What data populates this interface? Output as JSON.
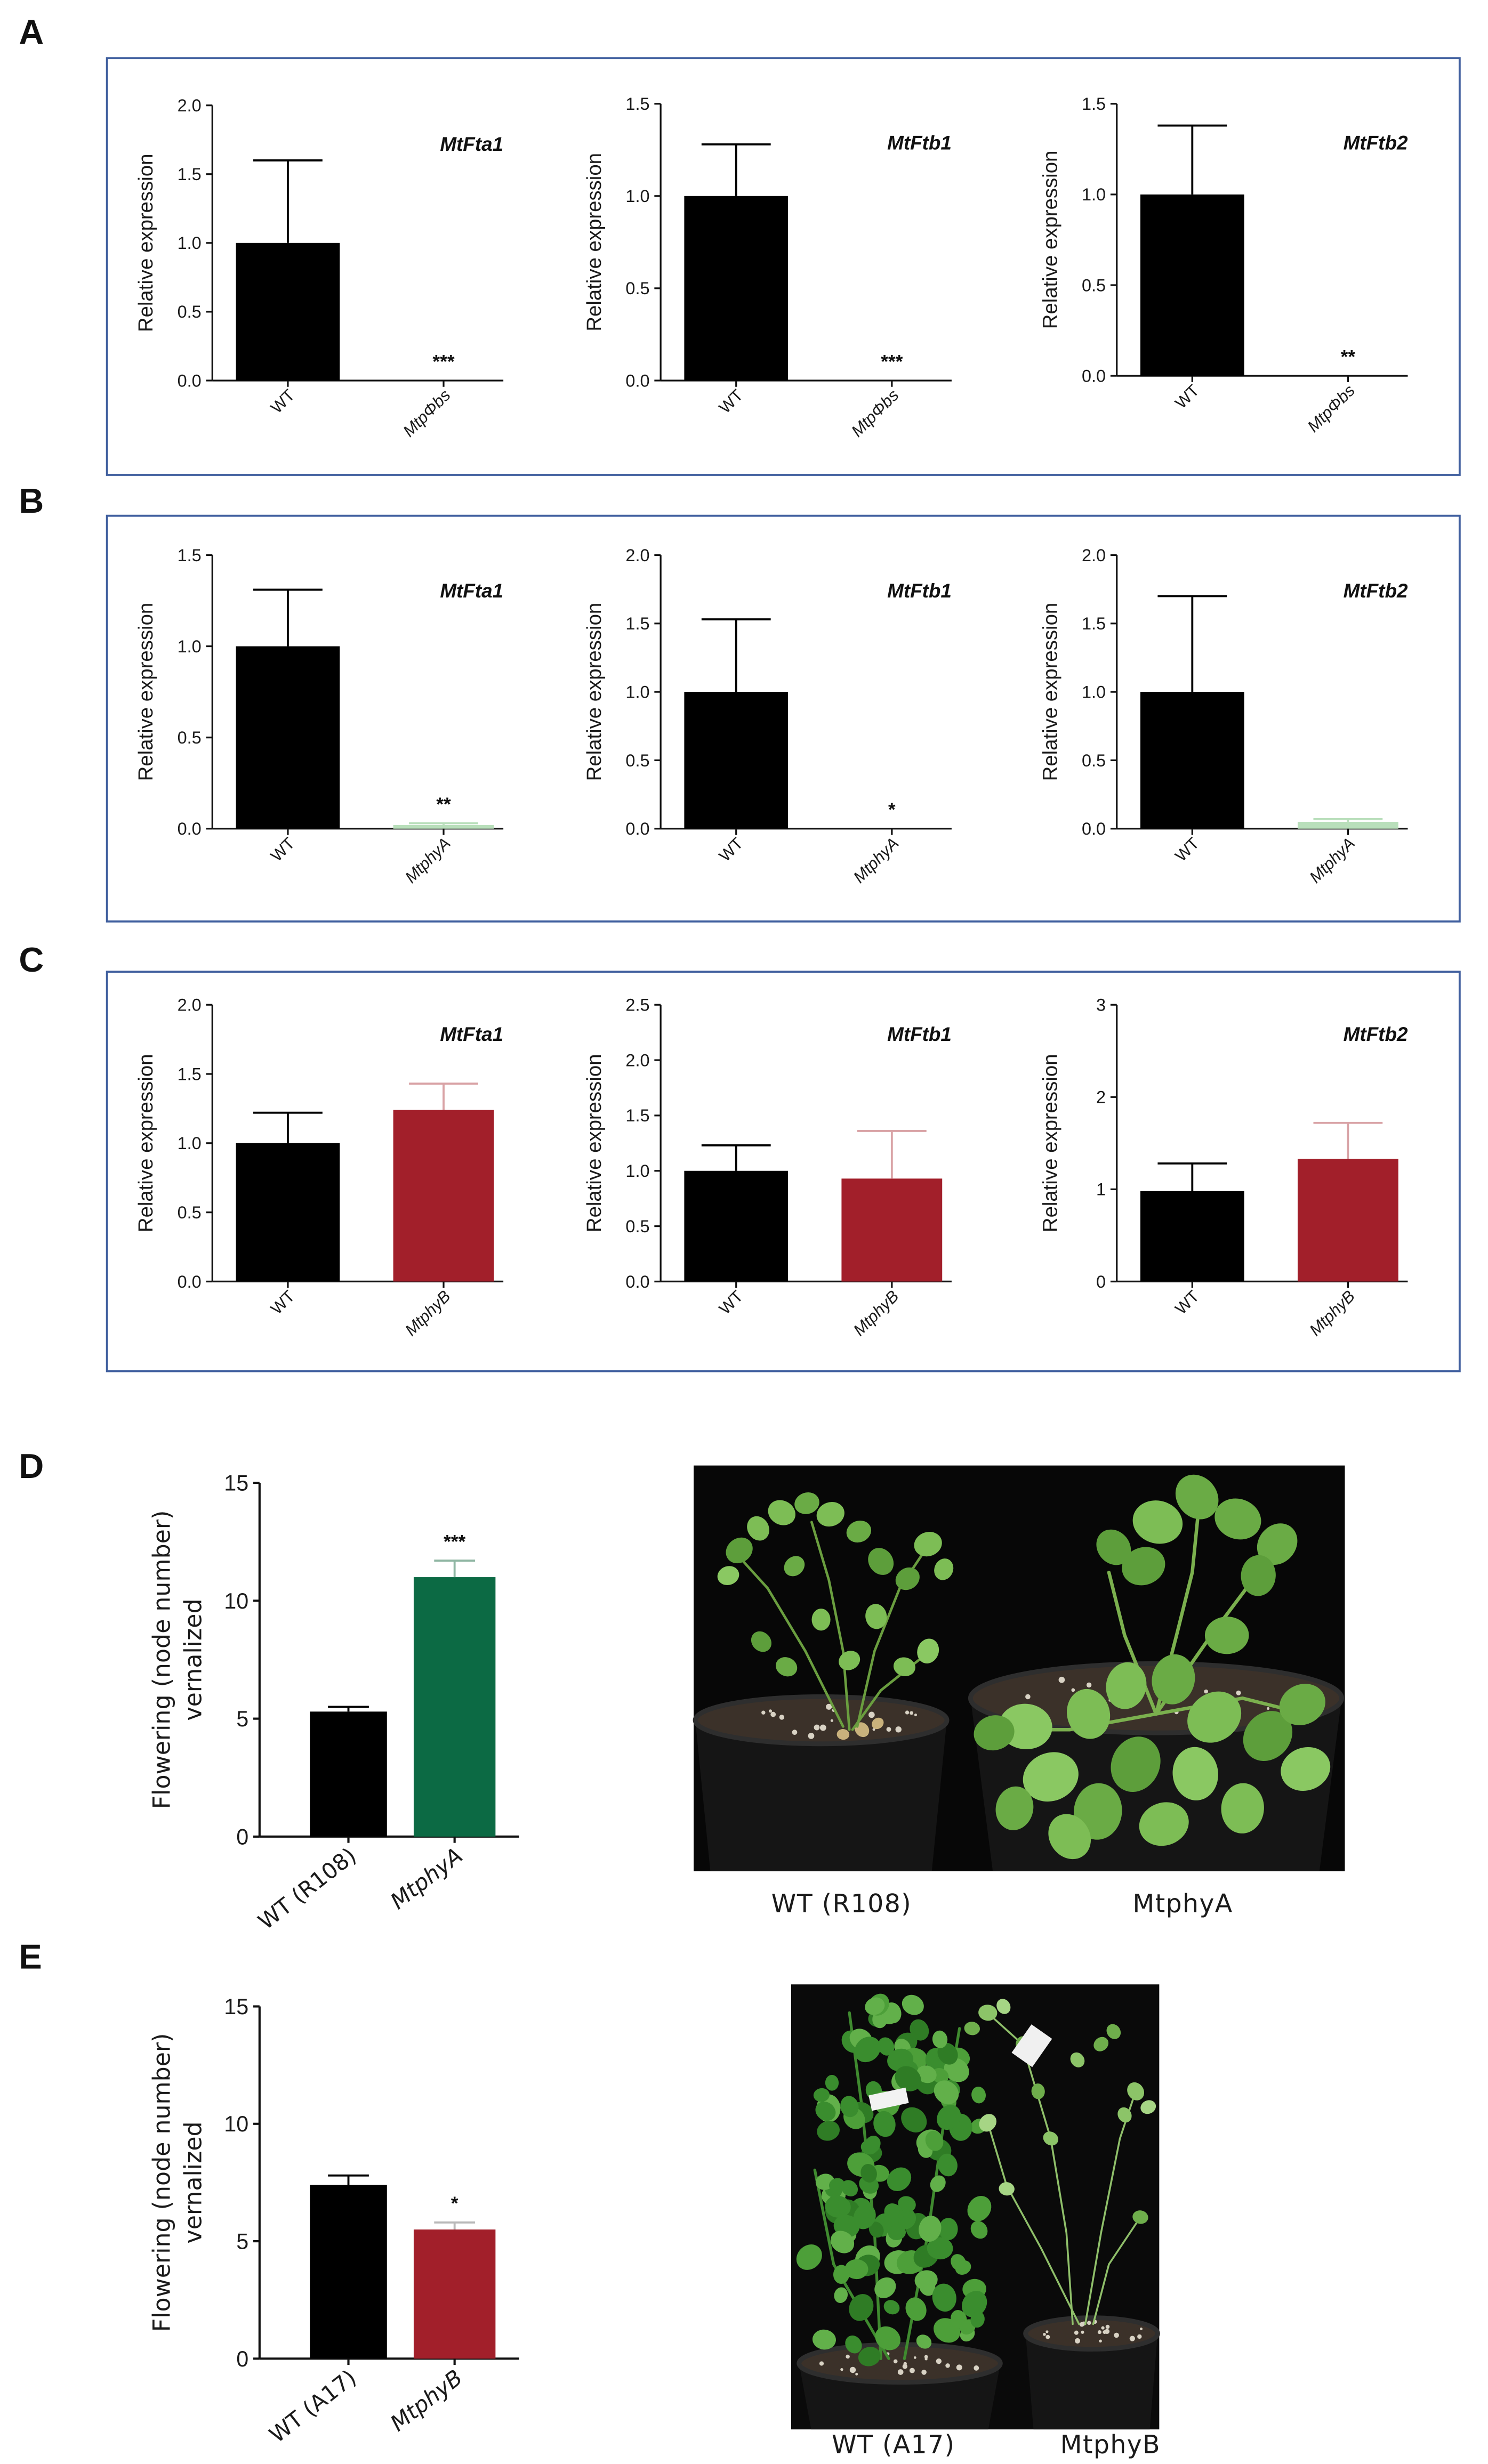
{
  "panels": [
    {
      "label": "A"
    },
    {
      "label": "B"
    },
    {
      "label": "C"
    },
    {
      "label": "D"
    },
    {
      "label": "E"
    }
  ],
  "chart_data": [
    {
      "type": "bar",
      "title": "MtFta1",
      "ylabel": [
        "Relative expression"
      ],
      "ylim": [
        0,
        2.0
      ],
      "yticks": [
        "0.0",
        "0.5",
        "1.0",
        "1.5",
        "2.0"
      ],
      "categories": [
        "WT",
        "MtpΦbs"
      ],
      "values": [
        1.0,
        0.0
      ],
      "errors": [
        0.6,
        0.0
      ],
      "significance": [
        "",
        "***"
      ],
      "colors": [
        "#000000",
        "#000000"
      ],
      "error_colors": [
        "#000000",
        "#000000"
      ]
    },
    {
      "type": "bar",
      "title": "MtFtb1",
      "ylabel": [
        "Relative expression"
      ],
      "ylim": [
        0,
        1.5
      ],
      "yticks": [
        "0.0",
        "0.5",
        "1.0",
        "1.5"
      ],
      "categories": [
        "WT",
        "MtpΦbs"
      ],
      "values": [
        1.0,
        0.0
      ],
      "errors": [
        0.28,
        0.0
      ],
      "significance": [
        "",
        "***"
      ],
      "colors": [
        "#000000",
        "#000000"
      ],
      "error_colors": [
        "#000000",
        "#000000"
      ]
    },
    {
      "type": "bar",
      "title": "MtFtb2",
      "ylabel": [
        "Relative expression"
      ],
      "ylim": [
        0,
        1.5
      ],
      "yticks": [
        "0.0",
        "0.5",
        "1.0",
        "1.5"
      ],
      "categories": [
        "WT",
        "MtpΦbs"
      ],
      "values": [
        1.0,
        0.0
      ],
      "errors": [
        0.38,
        0.0
      ],
      "significance": [
        "",
        "**"
      ],
      "colors": [
        "#000000",
        "#000000"
      ],
      "error_colors": [
        "#000000",
        "#000000"
      ]
    },
    {
      "type": "bar",
      "title": "MtFta1",
      "ylabel": [
        "Relative expression"
      ],
      "ylim": [
        0,
        1.5
      ],
      "yticks": [
        "0.0",
        "0.5",
        "1.0",
        "1.5"
      ],
      "categories": [
        "WT",
        "MtphyA"
      ],
      "values": [
        1.0,
        0.02
      ],
      "errors": [
        0.31,
        0.01
      ],
      "significance": [
        "",
        "**"
      ],
      "colors": [
        "#000000",
        "#b9dfbb"
      ],
      "error_colors": [
        "#000000",
        "#b9dfbb"
      ]
    },
    {
      "type": "bar",
      "title": "MtFtb1",
      "ylabel": [
        "Relative expression"
      ],
      "ylim": [
        0,
        2.0
      ],
      "yticks": [
        "0.0",
        "0.5",
        "1.0",
        "1.5",
        "2.0"
      ],
      "categories": [
        "WT",
        "MtphyA"
      ],
      "values": [
        1.0,
        0.0
      ],
      "errors": [
        0.53,
        0.0
      ],
      "significance": [
        "",
        "*"
      ],
      "colors": [
        "#000000",
        "#b9dfbb"
      ],
      "error_colors": [
        "#000000",
        "#b9dfbb"
      ]
    },
    {
      "type": "bar",
      "title": "MtFtb2",
      "ylabel": [
        "Relative expression"
      ],
      "ylim": [
        0,
        2.0
      ],
      "yticks": [
        "0.0",
        "0.5",
        "1.0",
        "1.5",
        "2.0"
      ],
      "categories": [
        "WT",
        "MtphyA"
      ],
      "values": [
        1.0,
        0.05
      ],
      "errors": [
        0.7,
        0.02
      ],
      "significance": [
        "",
        ""
      ],
      "colors": [
        "#000000",
        "#b9dfbb"
      ],
      "error_colors": [
        "#000000",
        "#b9dfbb"
      ]
    },
    {
      "type": "bar",
      "title": "MtFta1",
      "ylabel": [
        "Relative expression"
      ],
      "ylim": [
        0,
        2.0
      ],
      "yticks": [
        "0.0",
        "0.5",
        "1.0",
        "1.5",
        "2.0"
      ],
      "categories": [
        "WT",
        "MtphyB"
      ],
      "values": [
        1.0,
        1.24
      ],
      "errors": [
        0.22,
        0.19
      ],
      "significance": [
        "",
        ""
      ],
      "colors": [
        "#000000",
        "#a21f2a"
      ],
      "error_colors": [
        "#000000",
        "#d9a3a6"
      ]
    },
    {
      "type": "bar",
      "title": "MtFtb1",
      "ylabel": [
        "Relative expression"
      ],
      "ylim": [
        0,
        2.5
      ],
      "yticks": [
        "0.0",
        "0.5",
        "1.0",
        "1.5",
        "2.0",
        "2.5"
      ],
      "categories": [
        "WT",
        "MtphyB"
      ],
      "values": [
        1.0,
        0.93
      ],
      "errors": [
        0.23,
        0.43
      ],
      "significance": [
        "",
        ""
      ],
      "colors": [
        "#000000",
        "#a21f2a"
      ],
      "error_colors": [
        "#000000",
        "#d9a3a6"
      ]
    },
    {
      "type": "bar",
      "title": "MtFtb2",
      "ylabel": [
        "Relative expression"
      ],
      "ylim": [
        0,
        3
      ],
      "yticks": [
        "0",
        "1",
        "2",
        "3"
      ],
      "categories": [
        "WT",
        "MtphyB"
      ],
      "values": [
        0.98,
        1.33
      ],
      "errors": [
        0.3,
        0.39
      ],
      "significance": [
        "",
        ""
      ],
      "colors": [
        "#000000",
        "#a21f2a"
      ],
      "error_colors": [
        "#000000",
        "#d9a3a6"
      ]
    },
    {
      "type": "bar",
      "ylabel": [
        "Flowering (node number)",
        "vernalized"
      ],
      "ylim": [
        0,
        15
      ],
      "yticks": [
        "0",
        "5",
        "10",
        "15"
      ],
      "categories": [
        "WT (R108)",
        "MtphyA"
      ],
      "values": [
        5.3,
        11.0
      ],
      "errors": [
        0.2,
        0.7
      ],
      "significance": [
        "",
        "***"
      ],
      "colors": [
        "#000000",
        "#0c6a44"
      ],
      "error_colors": [
        "#000000",
        "#8fb6a3"
      ]
    },
    {
      "type": "bar",
      "ylabel": [
        "Flowering (node number)",
        "vernalized"
      ],
      "ylim": [
        0,
        15
      ],
      "yticks": [
        "0",
        "5",
        "10",
        "15"
      ],
      "categories": [
        "WT (A17)",
        "MtphyB"
      ],
      "values": [
        7.4,
        5.5
      ],
      "errors": [
        0.4,
        0.3
      ],
      "significance": [
        "",
        "*"
      ],
      "colors": [
        "#000000",
        "#a21f2a"
      ],
      "error_colors": [
        "#000000",
        "#b9b9b9"
      ]
    }
  ],
  "photos": {
    "D": {
      "captions": [
        "WT (R108)",
        "MtphyA"
      ]
    },
    "E": {
      "captions": [
        "WT (A17)",
        "MtphyB"
      ]
    }
  }
}
